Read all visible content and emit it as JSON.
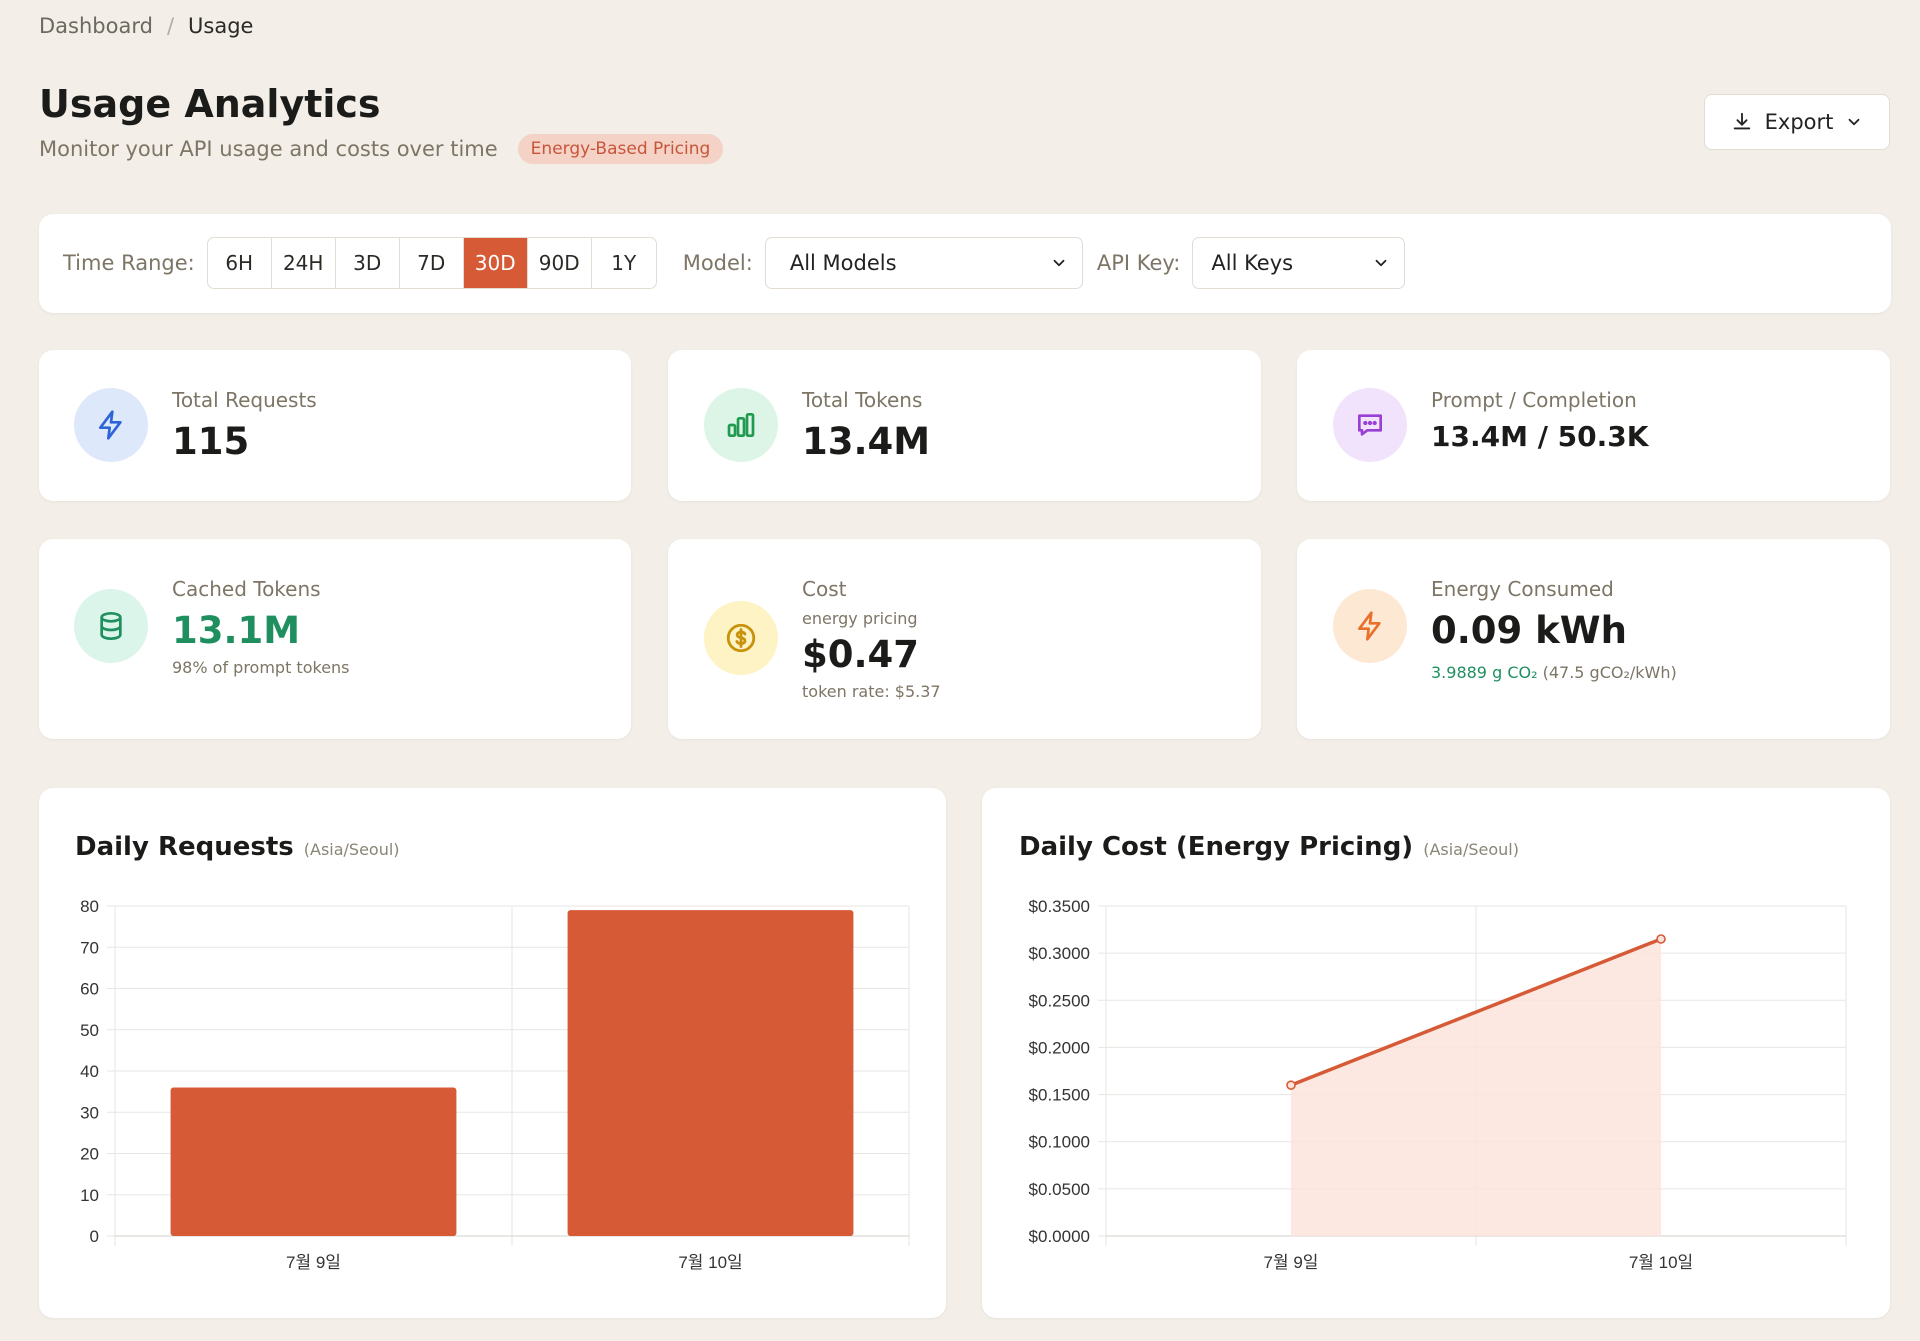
{
  "breadcrumb": {
    "root": "Dashboard",
    "separator": "/",
    "current": "Usage"
  },
  "header": {
    "title": "Usage Analytics",
    "subtitle": "Monitor your API usage and costs over time",
    "badge": "Energy-Based Pricing",
    "export_label": "Export"
  },
  "filters": {
    "time_range_label": "Time Range:",
    "time_ranges": [
      "6H",
      "24H",
      "3D",
      "7D",
      "30D",
      "90D",
      "1Y"
    ],
    "active_range": "30D",
    "model_label": "Model:",
    "model_value": "All Models",
    "api_key_label": "API Key:",
    "api_key_value": "All Keys"
  },
  "stats": {
    "total_requests": {
      "label": "Total Requests",
      "value": "115",
      "icon": "lightning-icon"
    },
    "total_tokens": {
      "label": "Total Tokens",
      "value": "13.4M",
      "icon": "bar-chart-icon"
    },
    "prompt_completion": {
      "label": "Prompt / Completion",
      "value": "13.4M / 50.3K",
      "icon": "chat-icon"
    },
    "cached_tokens": {
      "label": "Cached Tokens",
      "value": "13.1M",
      "note": "98% of prompt tokens",
      "icon": "database-icon"
    },
    "cost": {
      "label": "Cost",
      "sublabel": "energy pricing",
      "value": "$0.47",
      "note": "token rate: $5.37",
      "icon": "dollar-icon"
    },
    "energy": {
      "label": "Energy Consumed",
      "value": "0.09 kWh",
      "co2": "3.9889 g CO₂",
      "intensity": "(47.5 gCO₂/kWh)",
      "icon": "lightning-icon"
    }
  },
  "colors": {
    "accent": "#d75a37",
    "green": "#1f8f5f",
    "blue_bg": "#dde8fb",
    "blue_fg": "#2f64d8",
    "green_bg": "#dcf5e7",
    "green_fg": "#1f9a4e",
    "purple_bg": "#f1e3fb",
    "purple_fg": "#9a3fd6",
    "teal_bg": "#dcf5ea",
    "teal_fg": "#1f8f5f",
    "yellow_bg": "#fdf3c5",
    "yellow_fg": "#c8920c",
    "orange_bg": "#fde8d4",
    "orange_fg": "#e8702a",
    "area_fill": "#fbe3dc"
  },
  "charts": {
    "requests_title": "Daily Requests",
    "requests_tz": "(Asia/Seoul)",
    "cost_title": "Daily Cost (Energy Pricing)",
    "cost_tz": "(Asia/Seoul)"
  },
  "chart_data": [
    {
      "type": "bar",
      "title": "Daily Requests",
      "categories": [
        "7월 9일",
        "7월 10일"
      ],
      "values": [
        36,
        79
      ],
      "ylim": [
        0,
        80
      ],
      "yticks": [
        0,
        10,
        20,
        30,
        40,
        50,
        60,
        70,
        80
      ],
      "grid": true
    },
    {
      "type": "area",
      "title": "Daily Cost (Energy Pricing)",
      "categories": [
        "7월 9일",
        "7월 10일"
      ],
      "values": [
        0.16,
        0.315
      ],
      "ylim": [
        0,
        0.35
      ],
      "yticks": [
        0,
        0.05,
        0.1,
        0.15,
        0.2,
        0.25,
        0.3,
        0.35
      ],
      "y_format": "$0.0000",
      "grid": true
    }
  ]
}
